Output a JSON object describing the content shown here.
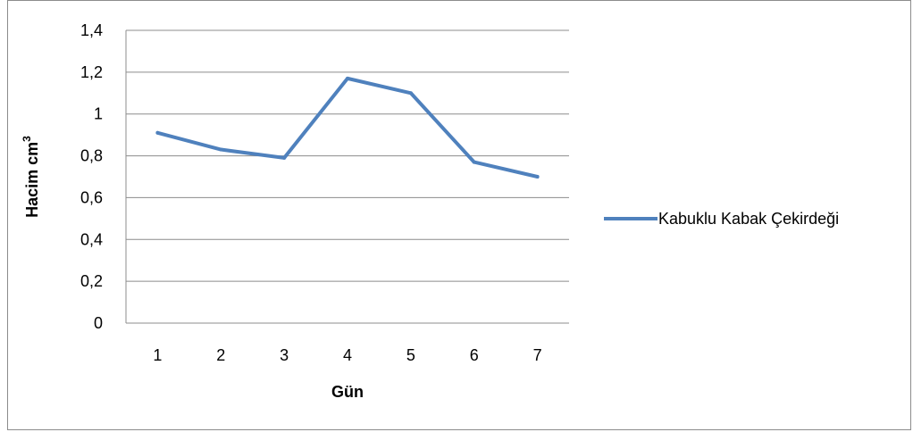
{
  "chart_data": {
    "type": "line",
    "title": "",
    "xlabel": "Gün",
    "ylabel": "Hacim cm",
    "ylabel_superscript": "3",
    "categories": [
      "1",
      "2",
      "3",
      "4",
      "5",
      "6",
      "7"
    ],
    "ylim": [
      0,
      1.4
    ],
    "yticks": [
      0,
      0.2,
      0.4,
      0.6,
      0.8,
      1,
      1.2,
      1.4
    ],
    "ytick_labels": [
      "0",
      "0,2",
      "0,4",
      "0,6",
      "0,8",
      "1",
      "1,2",
      "1,4"
    ],
    "grid": true,
    "legend_position": "right",
    "series": [
      {
        "name": "Kabuklu Kabak Çekirdeği",
        "color": "#4f81bd",
        "values": [
          0.91,
          0.83,
          0.79,
          1.17,
          1.1,
          0.77,
          0.7
        ]
      }
    ]
  }
}
